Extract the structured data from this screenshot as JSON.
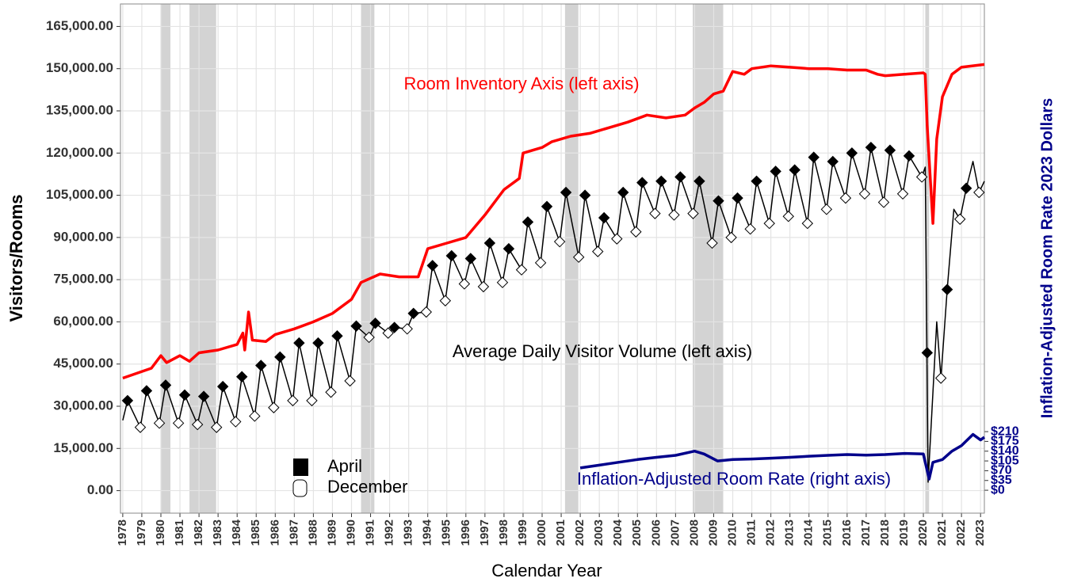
{
  "chart_data": {
    "type": "line",
    "x_label": "Calendar Year",
    "y_label": "Visitors/Rooms",
    "y2_label": "Inflation-Adjusted Room Rate 2023 Dollars",
    "xlim": [
      1977.88,
      2023.2
    ],
    "ylim": [
      -8000,
      173000
    ],
    "y2lim": [
      -82,
      1742
    ],
    "xticks": [
      1978,
      1979,
      1980,
      1981,
      1982,
      1983,
      1984,
      1985,
      1986,
      1987,
      1988,
      1989,
      1990,
      1991,
      1992,
      1993,
      1994,
      1995,
      1996,
      1997,
      1998,
      1999,
      2000,
      2001,
      2002,
      2003,
      2004,
      2005,
      2006,
      2007,
      2008,
      2009,
      2010,
      2011,
      2012,
      2013,
      2014,
      2015,
      2016,
      2017,
      2018,
      2019,
      2020,
      2021,
      2022,
      2023
    ],
    "yticks": [
      {
        "value": 0,
        "label": "0.00"
      },
      {
        "value": 15000,
        "label": "15,000.00"
      },
      {
        "value": 30000,
        "label": "30,000.00"
      },
      {
        "value": 45000,
        "label": "45,000.00"
      },
      {
        "value": 60000,
        "label": "60,000.00"
      },
      {
        "value": 75000,
        "label": "75,000.00"
      },
      {
        "value": 90000,
        "label": "90,000.00"
      },
      {
        "value": 105000,
        "label": "105,000.00"
      },
      {
        "value": 120000,
        "label": "120,000.00"
      },
      {
        "value": 135000,
        "label": "135,000.00"
      },
      {
        "value": 150000,
        "label": "150,000.00"
      },
      {
        "value": 165000,
        "label": "165,000.00"
      }
    ],
    "y2ticks": [
      {
        "value": 0,
        "label": "$0"
      },
      {
        "value": 35,
        "label": "$35"
      },
      {
        "value": 70,
        "label": "$70"
      },
      {
        "value": 105,
        "label": "$105"
      },
      {
        "value": 140,
        "label": "$140"
      },
      {
        "value": 175,
        "label": "$175"
      },
      {
        "value": 210,
        "label": "$210"
      }
    ],
    "grid": true,
    "shade_color": "#d3d3d3",
    "shaded_periods": [
      [
        1980.0,
        1980.5
      ],
      [
        1981.5,
        1982.9
      ],
      [
        1990.5,
        1991.2
      ],
      [
        2001.2,
        2001.9
      ],
      [
        2007.9,
        2009.5
      ],
      [
        2020.1,
        2020.3
      ]
    ],
    "series": [
      {
        "name": "Room Inventory Axis (left axis)",
        "color": "#ff0000",
        "x": [
          1978.0,
          1979.5,
          1980.0,
          1980.3,
          1981.0,
          1981.5,
          1982.0,
          1983.0,
          1984.0,
          1984.3,
          1984.4,
          1984.6,
          1984.8,
          1985.5,
          1986.0,
          1987.0,
          1988.0,
          1989.0,
          1990.0,
          1990.5,
          1991.5,
          1992.5,
          1993.5,
          1994.0,
          1995.0,
          1996.0,
          1997.0,
          1998.0,
          1998.8,
          1999.0,
          2000.0,
          2000.5,
          2001.5,
          2002.5,
          2003.5,
          2004.5,
          2005.5,
          2006.5,
          2007.5,
          2008.0,
          2008.5,
          2009.0,
          2009.5,
          2010.0,
          2010.6,
          2011.0,
          2012.0,
          2013.0,
          2014.0,
          2015.0,
          2016.0,
          2017.0,
          2017.6,
          2018.0,
          2019.0,
          2020.0,
          2020.1,
          2020.2,
          2020.5,
          2020.7,
          2021.0,
          2021.5,
          2022.0,
          2023.2
        ],
        "values": [
          40000,
          43500,
          48000,
          45500,
          48000,
          46000,
          49000,
          50000,
          52000,
          56000,
          50000,
          63500,
          53500,
          53000,
          55500,
          57500,
          60000,
          63000,
          68000,
          74000,
          77000,
          76000,
          76000,
          86000,
          88000,
          90000,
          98000,
          107000,
          111000,
          120000,
          122000,
          124000,
          126000,
          127000,
          129000,
          131000,
          133500,
          132500,
          133500,
          136000,
          138000,
          141000,
          142000,
          149000,
          148000,
          150000,
          151000,
          150500,
          150000,
          150000,
          149500,
          149500,
          148000,
          147500,
          148000,
          148500,
          148000,
          130000,
          95000,
          125000,
          140000,
          148000,
          150500,
          151500
        ]
      },
      {
        "name": "Average Daily Visitor Volume (left axis)",
        "color": "#000000",
        "x": [
          1978.0,
          1978.25,
          1978.92,
          1979.25,
          1979.92,
          1980.25,
          1980.92,
          1981.25,
          1981.92,
          1982.25,
          1982.92,
          1983.25,
          1983.92,
          1984.25,
          1984.92,
          1985.25,
          1985.92,
          1986.25,
          1986.92,
          1987.25,
          1987.92,
          1988.25,
          1988.92,
          1989.25,
          1989.92,
          1990.25,
          1990.92,
          1991.25,
          1991.92,
          1992.25,
          1992.92,
          1993.25,
          1993.92,
          1994.25,
          1994.92,
          1995.25,
          1995.92,
          1996.25,
          1996.92,
          1997.25,
          1997.92,
          1998.25,
          1998.92,
          1999.25,
          1999.92,
          2000.25,
          2000.92,
          2001.25,
          2001.92,
          2002.25,
          2002.92,
          2003.25,
          2003.92,
          2004.25,
          2004.92,
          2005.25,
          2005.92,
          2006.25,
          2006.92,
          2007.25,
          2007.92,
          2008.25,
          2008.92,
          2009.25,
          2009.92,
          2010.25,
          2010.92,
          2011.25,
          2011.92,
          2012.25,
          2012.92,
          2013.25,
          2013.92,
          2014.25,
          2014.92,
          2015.25,
          2015.92,
          2016.25,
          2016.92,
          2017.25,
          2017.92,
          2018.25,
          2018.92,
          2019.25,
          2019.92,
          2020.1,
          2020.25,
          2020.7,
          2020.92,
          2021.25,
          2021.6,
          2021.92,
          2022.25,
          2022.6,
          2022.92,
          2023.2
        ],
        "values": [
          25000,
          32000,
          22500,
          35500,
          24000,
          37500,
          24000,
          34000,
          23500,
          33500,
          22500,
          37000,
          24500,
          40500,
          26500,
          44500,
          29500,
          47500,
          32000,
          52500,
          32000,
          52500,
          35000,
          55000,
          39000,
          58500,
          54500,
          59500,
          56000,
          58000,
          57500,
          63000,
          63500,
          80000,
          67500,
          83500,
          73500,
          82500,
          72500,
          88000,
          74000,
          86000,
          78500,
          95500,
          81000,
          101000,
          88500,
          106000,
          83000,
          105000,
          85000,
          97000,
          89500,
          106000,
          92000,
          109500,
          98500,
          110000,
          98000,
          111500,
          98500,
          110000,
          88000,
          103000,
          90000,
          104000,
          93000,
          110000,
          95000,
          113500,
          97500,
          114000,
          95000,
          118500,
          100000,
          117000,
          104000,
          120000,
          105500,
          122000,
          102500,
          121000,
          105500,
          119000,
          111500,
          115000,
          3000,
          60000,
          40000,
          71500,
          100000,
          96500,
          107500,
          117000,
          106000,
          110000
        ]
      },
      {
        "name": "Inflation-Adjusted Room Rate (right axis)",
        "color": "#00008b",
        "axis": "y2",
        "x": [
          2002.0,
          2003.0,
          2004.0,
          2005.0,
          2006.0,
          2007.0,
          2008.0,
          2008.5,
          2009.2,
          2010.0,
          2011.0,
          2012.0,
          2013.0,
          2014.0,
          2015.0,
          2016.0,
          2017.0,
          2018.0,
          2019.0,
          2020.0,
          2020.3,
          2020.5,
          2021.0,
          2021.5,
          2022.0,
          2022.6,
          2023.0,
          2023.2
        ],
        "values": [
          80,
          90,
          100,
          110,
          118,
          125,
          140,
          130,
          105,
          110,
          112,
          115,
          118,
          122,
          125,
          128,
          126,
          128,
          132,
          130,
          40,
          100,
          110,
          140,
          160,
          200,
          180,
          190
        ]
      },
      {
        "name": "April",
        "type": "scatter",
        "marker": "filled",
        "color": "#000000",
        "x": [
          1978.25,
          1979.25,
          1980.25,
          1981.25,
          1982.25,
          1983.25,
          1984.25,
          1985.25,
          1986.25,
          1987.25,
          1988.25,
          1989.25,
          1990.25,
          1991.25,
          1992.25,
          1993.25,
          1994.25,
          1995.25,
          1996.25,
          1997.25,
          1998.25,
          1999.25,
          2000.25,
          2001.25,
          2002.25,
          2003.25,
          2004.25,
          2005.25,
          2006.25,
          2007.25,
          2008.25,
          2009.25,
          2010.25,
          2011.25,
          2012.25,
          2013.25,
          2014.25,
          2015.25,
          2016.25,
          2017.25,
          2018.25,
          2019.25,
          2020.2,
          2021.25,
          2022.25
        ],
        "values": [
          32000,
          35500,
          37500,
          34000,
          33500,
          37000,
          40500,
          44500,
          47500,
          52500,
          52500,
          55000,
          58500,
          59500,
          58000,
          63000,
          80000,
          83500,
          82500,
          88000,
          86000,
          95500,
          101000,
          106000,
          105000,
          97000,
          106000,
          109500,
          110000,
          111500,
          110000,
          103000,
          104000,
          110000,
          113500,
          114000,
          118500,
          117000,
          120000,
          122000,
          121000,
          119000,
          49000,
          71500,
          107500
        ]
      },
      {
        "name": "December",
        "type": "scatter",
        "marker": "open",
        "color": "#000000",
        "x": [
          1978.92,
          1979.92,
          1980.92,
          1981.92,
          1982.92,
          1983.92,
          1984.92,
          1985.92,
          1986.92,
          1987.92,
          1988.92,
          1989.92,
          1990.92,
          1991.92,
          1992.92,
          1993.92,
          1994.92,
          1995.92,
          1996.92,
          1997.92,
          1998.92,
          1999.92,
          2000.92,
          2001.92,
          2002.92,
          2003.92,
          2004.92,
          2005.92,
          2006.92,
          2007.92,
          2008.92,
          2009.92,
          2010.92,
          2011.92,
          2012.92,
          2013.92,
          2014.92,
          2015.92,
          2016.92,
          2017.92,
          2018.92,
          2019.92,
          2020.92,
          2021.92,
          2022.92
        ],
        "values": [
          22500,
          24000,
          24000,
          23500,
          22500,
          24500,
          26500,
          29500,
          32000,
          32000,
          35000,
          39000,
          54500,
          56000,
          57500,
          63500,
          67500,
          73500,
          72500,
          74000,
          78500,
          81000,
          88500,
          83000,
          85000,
          89500,
          92000,
          98500,
          98000,
          98500,
          88000,
          90000,
          93000,
          95000,
          97500,
          95000,
          100000,
          104000,
          105500,
          102500,
          105500,
          111500,
          40000,
          96500,
          106000
        ]
      }
    ]
  }
}
